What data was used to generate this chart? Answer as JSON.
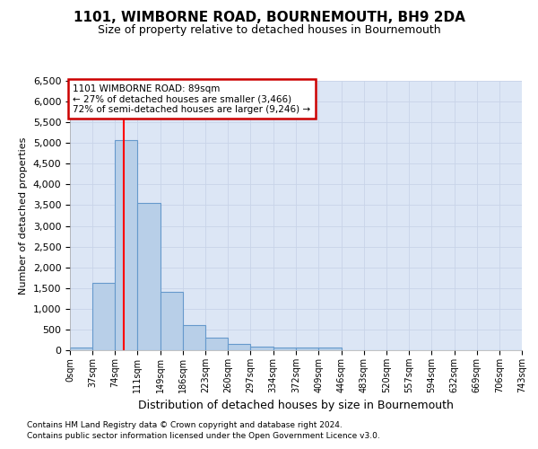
{
  "title": "1101, WIMBORNE ROAD, BOURNEMOUTH, BH9 2DA",
  "subtitle": "Size of property relative to detached houses in Bournemouth",
  "xlabel": "Distribution of detached houses by size in Bournemouth",
  "ylabel": "Number of detached properties",
  "footnote1": "Contains HM Land Registry data © Crown copyright and database right 2024.",
  "footnote2": "Contains public sector information licensed under the Open Government Licence v3.0.",
  "bar_edges": [
    0,
    37,
    74,
    111,
    149,
    186,
    223,
    260,
    297,
    334,
    372,
    409,
    446,
    483,
    520,
    557,
    594,
    632,
    669,
    706,
    743
  ],
  "bar_heights": [
    75,
    1620,
    5080,
    3560,
    1400,
    615,
    300,
    155,
    90,
    55,
    65,
    65,
    0,
    0,
    0,
    0,
    0,
    0,
    0,
    0
  ],
  "bar_color": "#b8cfe8",
  "bar_edge_color": "#6699cc",
  "red_line_x": 89,
  "annotation_line1": "1101 WIMBORNE ROAD: 89sqm",
  "annotation_line2": "← 27% of detached houses are smaller (3,466)",
  "annotation_line3": "72% of semi-detached houses are larger (9,246) →",
  "annotation_box_color": "#ffffff",
  "annotation_border_color": "#cc0000",
  "ylim": [
    0,
    6500
  ],
  "yticks": [
    0,
    500,
    1000,
    1500,
    2000,
    2500,
    3000,
    3500,
    4000,
    4500,
    5000,
    5500,
    6000,
    6500
  ],
  "tick_labels": [
    "0sqm",
    "37sqm",
    "74sqm",
    "111sqm",
    "149sqm",
    "186sqm",
    "223sqm",
    "260sqm",
    "297sqm",
    "334sqm",
    "372sqm",
    "409sqm",
    "446sqm",
    "483sqm",
    "520sqm",
    "557sqm",
    "594sqm",
    "632sqm",
    "669sqm",
    "706sqm",
    "743sqm"
  ],
  "grid_color": "#c8d4e8",
  "bg_color": "#dce6f5",
  "title_fontsize": 11,
  "subtitle_fontsize": 9,
  "ylabel_fontsize": 8,
  "xlabel_fontsize": 9,
  "ytick_fontsize": 8,
  "xtick_fontsize": 7,
  "footnote_fontsize": 6.5
}
